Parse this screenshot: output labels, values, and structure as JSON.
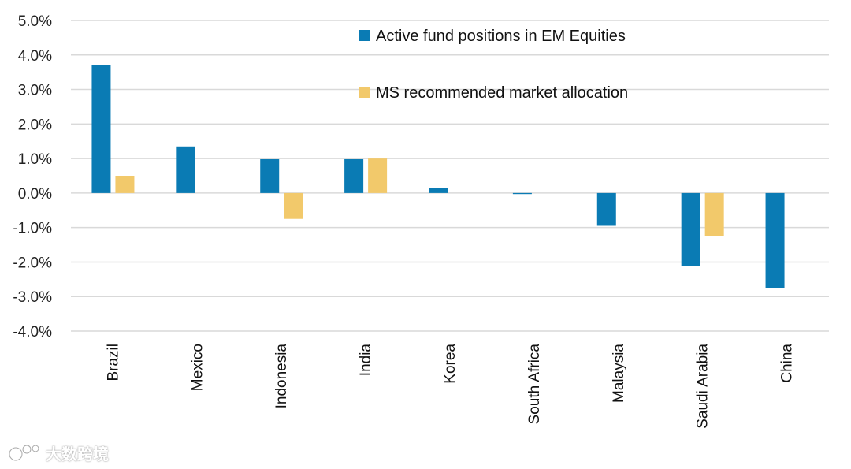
{
  "chart_data": {
    "type": "bar",
    "categories": [
      "Brazil",
      "Mexico",
      "Indonesia",
      "India",
      "Korea",
      "South Africa",
      "Malaysia",
      "Saudi Arabia",
      "China"
    ],
    "series": [
      {
        "name": "Active fund positions in EM Equities",
        "color": "#0a7bb4",
        "values": [
          3.72,
          1.35,
          0.98,
          0.98,
          0.15,
          -0.03,
          -0.95,
          -2.12,
          -2.75
        ]
      },
      {
        "name": "MS recommended market allocation",
        "color": "#f2c96b",
        "values": [
          0.5,
          0.0,
          -0.75,
          1.0,
          0.0,
          0.0,
          0.0,
          -1.25,
          0.0
        ]
      }
    ],
    "ylim": [
      -4.0,
      5.0
    ],
    "yticks": [
      5.0,
      4.0,
      3.0,
      2.0,
      1.0,
      0.0,
      -1.0,
      -2.0,
      -3.0,
      -4.0
    ],
    "tick_format": "%",
    "grid": true,
    "legend_position": "top-right",
    "title": "",
    "xlabel": "",
    "ylabel": ""
  },
  "watermark": {
    "text": "大数跨境"
  }
}
